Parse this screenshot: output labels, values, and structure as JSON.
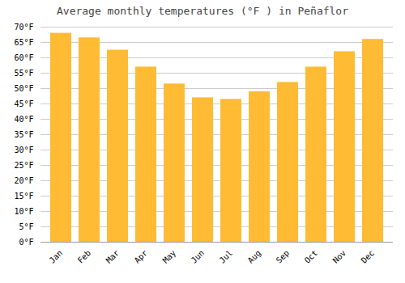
{
  "chart_data": {
    "type": "bar",
    "title": "Average monthly temperatures (°F ) in Peñaflor",
    "categories": [
      "Jan",
      "Feb",
      "Mar",
      "Apr",
      "May",
      "Jun",
      "Jul",
      "Aug",
      "Sep",
      "Oct",
      "Nov",
      "Dec"
    ],
    "values": [
      68,
      66.5,
      62.5,
      57,
      51.5,
      47,
      46.5,
      49,
      52,
      57,
      62,
      66
    ],
    "color": "#FFBB33",
    "ylim": [
      0,
      70
    ],
    "yticks": [
      {
        "value": 0,
        "label": "0°F"
      },
      {
        "value": 5,
        "label": "5°F"
      },
      {
        "value": 10,
        "label": "10°F"
      },
      {
        "value": 15,
        "label": "15°F"
      },
      {
        "value": 20,
        "label": "20°F"
      },
      {
        "value": 25,
        "label": "25°F"
      },
      {
        "value": 30,
        "label": "30°F"
      },
      {
        "value": 35,
        "label": "35°F"
      },
      {
        "value": 40,
        "label": "40°F"
      },
      {
        "value": 45,
        "label": "45°F"
      },
      {
        "value": 50,
        "label": "50°F"
      },
      {
        "value": 55,
        "label": "55°F"
      },
      {
        "value": 60,
        "label": "60°F"
      },
      {
        "value": 65,
        "label": "65°F"
      },
      {
        "value": 70,
        "label": "70°F"
      }
    ],
    "grid": true
  }
}
